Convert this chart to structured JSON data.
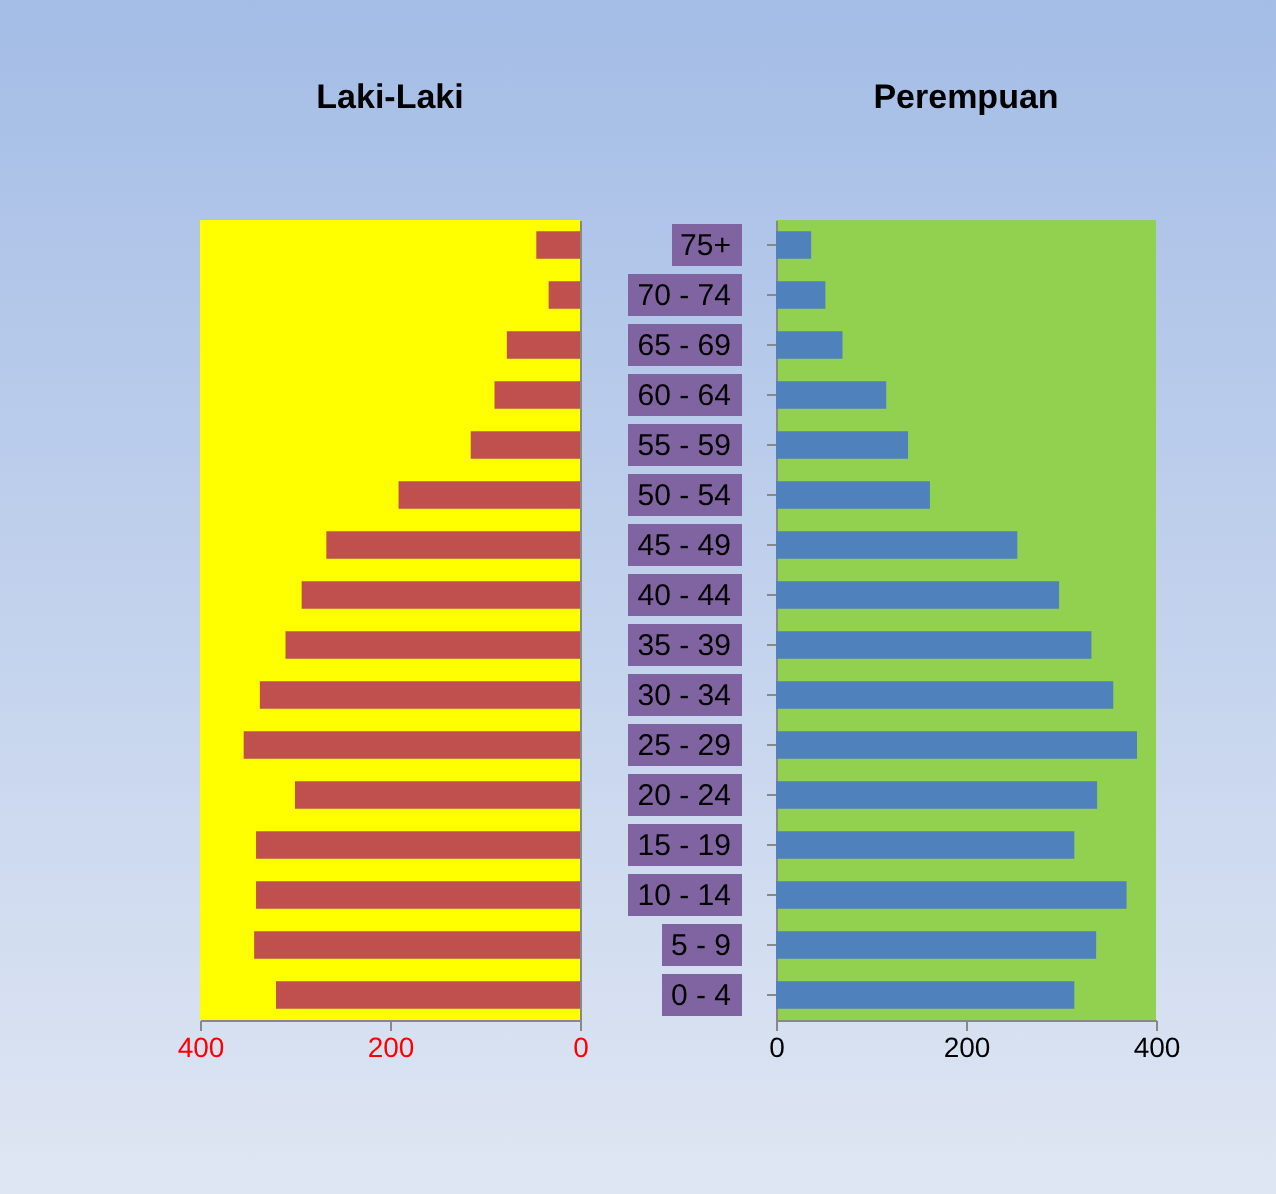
{
  "chart_data": [
    {
      "type": "bar",
      "orientation": "horizontal",
      "title": "Laki-Laki",
      "categories": [
        null,
        null,
        null,
        null,
        null,
        null,
        null,
        null,
        null,
        null,
        null,
        null,
        null,
        null,
        null,
        null
      ],
      "values": [
        46,
        33,
        77,
        90,
        115,
        191,
        267,
        293,
        310,
        337,
        354,
        300,
        341,
        341,
        343,
        320
      ],
      "color": "#c0504d",
      "xlim": [
        400,
        0
      ],
      "xticks": [
        400,
        200,
        0
      ],
      "tick_labels": "x",
      "grid": false
    },
    {
      "type": "bar",
      "orientation": "horizontal",
      "title": "Perempuan",
      "categories": [
        "75+",
        "70 - 74",
        "65 - 69",
        "60 - 64",
        "55 - 59",
        "50 - 54",
        "45 - 49",
        "40 - 44",
        "35 - 39",
        "30 - 34",
        "25 - 29",
        "20 - 24",
        "15 - 19",
        "10 - 14",
        "5 - 9",
        "0 - 4"
      ],
      "values": [
        37,
        52,
        70,
        116,
        139,
        162,
        254,
        298,
        332,
        355,
        380,
        338,
        314,
        369,
        337,
        314
      ],
      "color": "#4f81bd",
      "xlim": [
        0,
        400
      ],
      "xticks": [
        0,
        200,
        400
      ],
      "grid": false
    }
  ]
}
